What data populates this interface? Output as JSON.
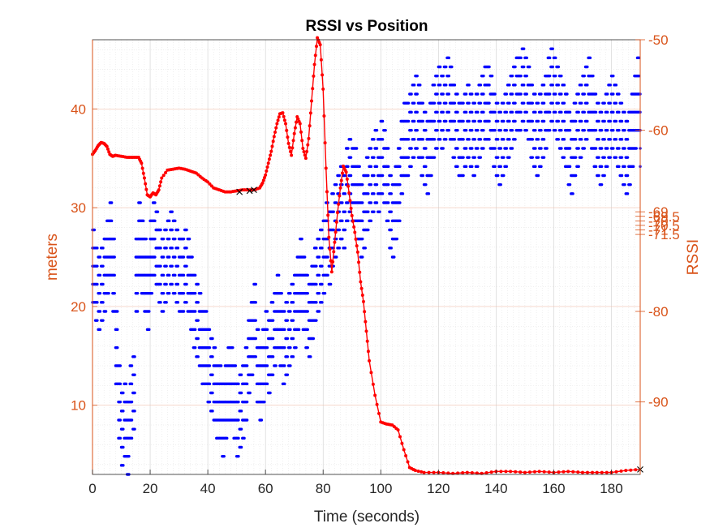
{
  "chart_data": {
    "type": "scatter",
    "title": "RSSI vs Position",
    "xlabel": "Time (seconds)",
    "ylabel_left": "meters",
    "ylabel_right": "RSSI",
    "xlim": [
      0,
      190
    ],
    "ylim_left": [
      3,
      47
    ],
    "ylim_right": [
      -98,
      -50
    ],
    "x_ticks": [
      0,
      20,
      40,
      60,
      80,
      100,
      120,
      140,
      160,
      180
    ],
    "y_ticks_left": [
      10,
      20,
      30,
      40
    ],
    "y_ticks_right": [
      -50,
      -60,
      -69,
      -69.5,
      -70,
      -70.5,
      -71,
      -71.5,
      -80,
      -90
    ],
    "y_tick_labels_right": [
      "-50",
      "-60",
      "-69",
      "-69.5",
      "-70",
      "-70.5",
      "-71",
      "-71.5",
      "-80",
      "-90"
    ],
    "grid": true,
    "colors": {
      "axis_left": "#D95319",
      "axis_right": "#D95319",
      "position": "#FF0000",
      "rssi": "#0000FF",
      "marker": "#000000"
    },
    "series": [
      {
        "axis": "left",
        "style": "line-with-dots",
        "x": [
          0,
          1,
          2,
          3,
          4,
          5,
          6,
          7,
          8,
          10,
          12,
          14,
          16,
          17,
          18,
          19,
          20,
          21,
          22,
          23,
          24,
          26,
          28,
          30,
          32,
          34,
          36,
          38,
          40,
          42,
          44,
          46,
          48,
          50,
          52,
          54,
          56,
          58,
          59,
          60,
          61,
          62,
          63,
          64,
          65,
          66,
          67,
          68,
          69,
          70,
          71,
          72,
          73,
          74,
          75,
          76,
          77,
          78,
          79,
          80,
          81,
          82,
          83,
          84,
          85,
          86,
          87,
          88,
          89,
          90,
          91,
          92,
          93,
          94,
          95,
          96,
          98,
          100,
          102,
          104,
          106,
          108,
          110,
          112,
          115,
          120,
          125,
          130,
          135,
          140,
          145,
          150,
          155,
          160,
          165,
          170,
          175,
          180,
          185,
          190
        ],
        "y": [
          35.4,
          35.8,
          36.3,
          36.6,
          36.5,
          36.2,
          35.4,
          35.2,
          35.3,
          35.2,
          35.1,
          35.1,
          35.1,
          34.5,
          33.0,
          31.3,
          31.1,
          31.5,
          31.3,
          31.8,
          33.0,
          33.8,
          33.9,
          34.0,
          33.9,
          33.7,
          33.5,
          33.0,
          32.6,
          32.0,
          31.8,
          31.6,
          31.6,
          31.7,
          31.8,
          31.8,
          31.8,
          32.0,
          32.5,
          33.3,
          34.5,
          35.7,
          37.2,
          38.5,
          39.5,
          39.6,
          38.5,
          36.5,
          35.3,
          37.5,
          39.2,
          38.5,
          36.0,
          35.0,
          37.0,
          40.8,
          44.5,
          47.2,
          46.5,
          42.0,
          34.0,
          27.0,
          23.5,
          26.5,
          29.5,
          32.0,
          34.2,
          33.6,
          31.5,
          29.2,
          27.5,
          25.5,
          22.5,
          20.5,
          17.5,
          14.5,
          11.0,
          8.3,
          8.1,
          8.0,
          7.5,
          5.5,
          3.7,
          3.4,
          3.2,
          3.2,
          3.1,
          3.2,
          3.1,
          3.3,
          3.3,
          3.2,
          3.3,
          3.2,
          3.3,
          3.2,
          3.2,
          3.2,
          3.4,
          3.5
        ]
      },
      {
        "axis": "right",
        "style": "dots",
        "x": [
          0,
          1,
          2,
          3,
          4,
          5,
          6,
          7,
          8,
          9,
          10,
          11,
          12,
          13,
          14,
          15,
          16,
          17,
          18,
          19,
          20,
          21,
          22,
          23,
          24,
          25,
          26,
          27,
          28,
          29,
          30,
          31,
          32,
          33,
          34,
          35,
          36,
          37,
          38,
          39,
          40,
          41,
          42,
          43,
          44,
          45,
          46,
          47,
          48,
          49,
          50,
          51,
          52,
          53,
          54,
          55,
          56,
          57,
          58,
          59,
          60,
          61,
          62,
          63,
          64,
          65,
          66,
          67,
          68,
          69,
          70,
          71,
          72,
          73,
          74,
          75,
          76,
          77,
          78,
          79,
          80,
          81,
          82,
          83,
          84,
          85,
          86,
          87,
          88,
          89,
          90,
          91,
          92,
          93,
          94,
          95,
          96,
          97,
          98,
          99,
          100,
          101,
          102,
          103,
          104,
          105,
          106,
          107,
          108,
          109,
          110,
          111,
          112,
          113,
          114,
          115,
          116,
          117,
          118,
          119,
          120,
          121,
          122,
          123,
          124,
          125,
          126,
          127,
          128,
          129,
          130,
          131,
          132,
          133,
          134,
          135,
          136,
          137,
          138,
          139,
          140,
          141,
          142,
          143,
          144,
          145,
          146,
          147,
          148,
          149,
          150,
          151,
          152,
          153,
          154,
          155,
          156,
          157,
          158,
          159,
          160,
          161,
          162,
          163,
          164,
          165,
          166,
          167,
          168,
          169,
          170,
          171,
          172,
          173,
          174,
          175,
          176,
          177,
          178,
          179,
          180,
          181,
          182,
          183,
          184,
          185,
          186,
          187,
          188,
          189,
          190
        ],
        "y": [
          -75,
          -77,
          -78,
          -77,
          -76,
          -74,
          -72,
          -76,
          -84,
          -90,
          -93,
          -92,
          -94,
          -90,
          -89,
          -76,
          -72,
          -74,
          -76,
          -78,
          -74,
          -72,
          -73,
          -75,
          -76,
          -75,
          -74,
          -73,
          -74,
          -75,
          -76,
          -76,
          -75,
          -76,
          -78,
          -80,
          -81,
          -82,
          -84,
          -84,
          -86,
          -87,
          -88,
          -90,
          -90,
          -92,
          -90,
          -88,
          -88,
          -90,
          -92,
          -91,
          -90,
          -88,
          -85,
          -83,
          -81,
          -86,
          -88,
          -86,
          -84,
          -85,
          -83,
          -82,
          -80,
          -82,
          -84,
          -83,
          -82,
          -81,
          -80,
          -78,
          -76,
          -78,
          -80,
          -81,
          -79,
          -77,
          -76,
          -75,
          -74,
          -72,
          -73,
          -71,
          -70,
          -69,
          -68,
          -69,
          -66,
          -65,
          -66,
          -66,
          -68,
          -70,
          -69,
          -67,
          -66,
          -65,
          -64,
          -65,
          -63,
          -64,
          -66,
          -69,
          -70,
          -68,
          -66,
          -63,
          -61,
          -61,
          -60,
          -59,
          -58,
          -59,
          -61,
          -62,
          -63,
          -61,
          -59,
          -58,
          -57,
          -58,
          -57,
          -56,
          -57,
          -59,
          -60,
          -61,
          -61,
          -60,
          -59,
          -60,
          -61,
          -60,
          -59,
          -58,
          -57,
          -57,
          -58,
          -60,
          -61,
          -62,
          -61,
          -60,
          -59,
          -58,
          -57,
          -56,
          -56,
          -55,
          -56,
          -57,
          -59,
          -60,
          -61,
          -60,
          -59,
          -58,
          -56,
          -55,
          -56,
          -57,
          -58,
          -59,
          -60,
          -62,
          -63,
          -61,
          -60,
          -59,
          -58,
          -57,
          -56,
          -58,
          -60,
          -61,
          -62,
          -61,
          -60,
          -59,
          -58,
          -59,
          -60,
          -61,
          -62,
          -63,
          -62,
          -60,
          -58,
          -56,
          -60
        ],
        "note_spread": [
          0,
          2,
          -2,
          4,
          -4
        ]
      }
    ],
    "markers": {
      "x": [
        51,
        54.5,
        56,
        190
      ],
      "y": [
        31.6,
        31.7,
        31.8,
        3.5
      ],
      "symbol": "x"
    }
  }
}
